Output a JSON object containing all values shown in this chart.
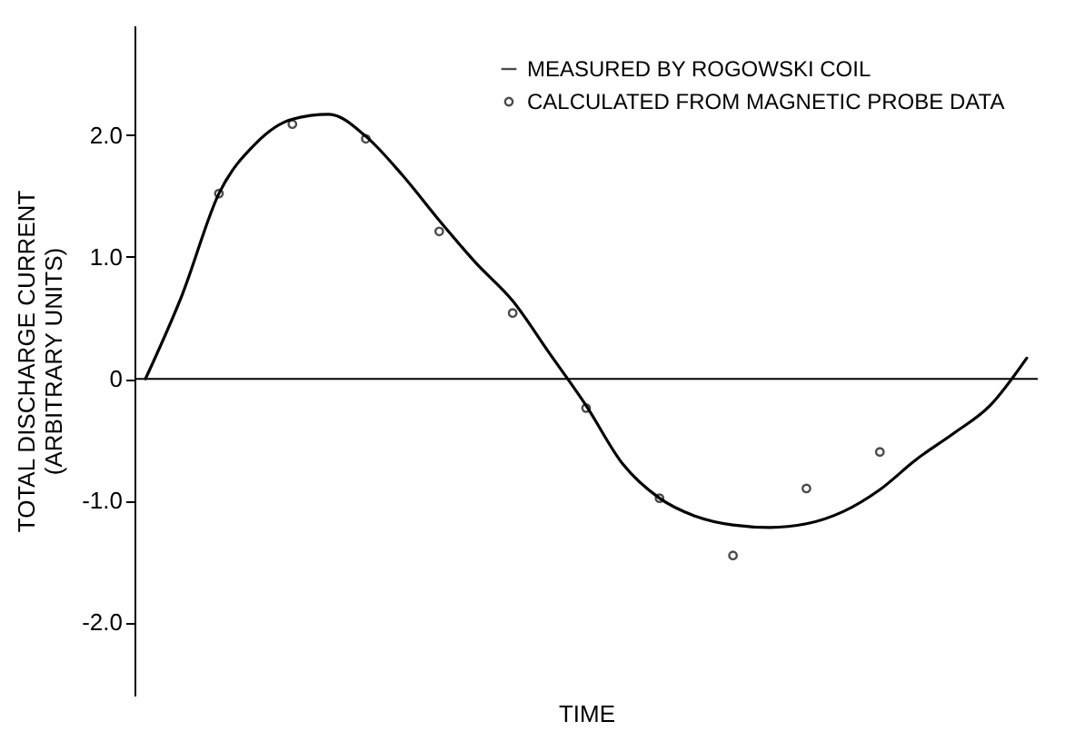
{
  "chart_data": {
    "type": "line",
    "xlabel": "TIME",
    "ylabel": "TOTAL DISCHARGE CURRENT\n(ARBITRARY UNITS)",
    "categories": [
      null,
      null,
      null,
      null,
      null,
      null,
      null,
      null,
      null,
      null,
      null,
      null,
      null,
      null,
      null,
      null,
      null,
      null,
      null,
      null,
      null,
      null,
      null,
      null,
      null
    ],
    "ylim": [
      -2.6,
      2.9
    ],
    "yticks": [
      {
        "value": -2,
        "label": "-2.0"
      },
      {
        "value": -1,
        "label": "-1.0"
      },
      0,
      {
        "value": 1,
        "label": "1.0"
      },
      {
        "value": 2,
        "label": "2.0"
      }
    ],
    "tick_labels": "y",
    "legend": "top right",
    "ref_lines": [
      {
        "axis": "y",
        "value": 0
      }
    ],
    "series": [
      {
        "name": "MEASURED BY ROGOWSKI COIL",
        "marker": "none",
        "line_style": "solid",
        "color": "#000000",
        "values": [
          0,
          0.69,
          1.52,
          1.93,
          2.13,
          2.17,
          1.99,
          1.67,
          1.3,
          0.95,
          0.64,
          0.21,
          -0.22,
          -0.7,
          -0.98,
          -1.13,
          -1.2,
          -1.22,
          -1.19,
          -1.09,
          -0.91,
          -0.66,
          -0.45,
          -0.22,
          0.17
        ]
      },
      {
        "name": "CALCULATED FROM MAGNETIC PROBE DATA",
        "type": "scatter",
        "marker": "circle",
        "color": "#000000",
        "values": [
          null,
          null,
          1.52,
          null,
          2.09,
          null,
          1.97,
          null,
          1.21,
          null,
          0.54,
          null,
          -0.24,
          null,
          -0.98,
          null,
          -1.45,
          null,
          -0.9,
          null,
          -0.6,
          null,
          null,
          null,
          null
        ]
      }
    ]
  }
}
